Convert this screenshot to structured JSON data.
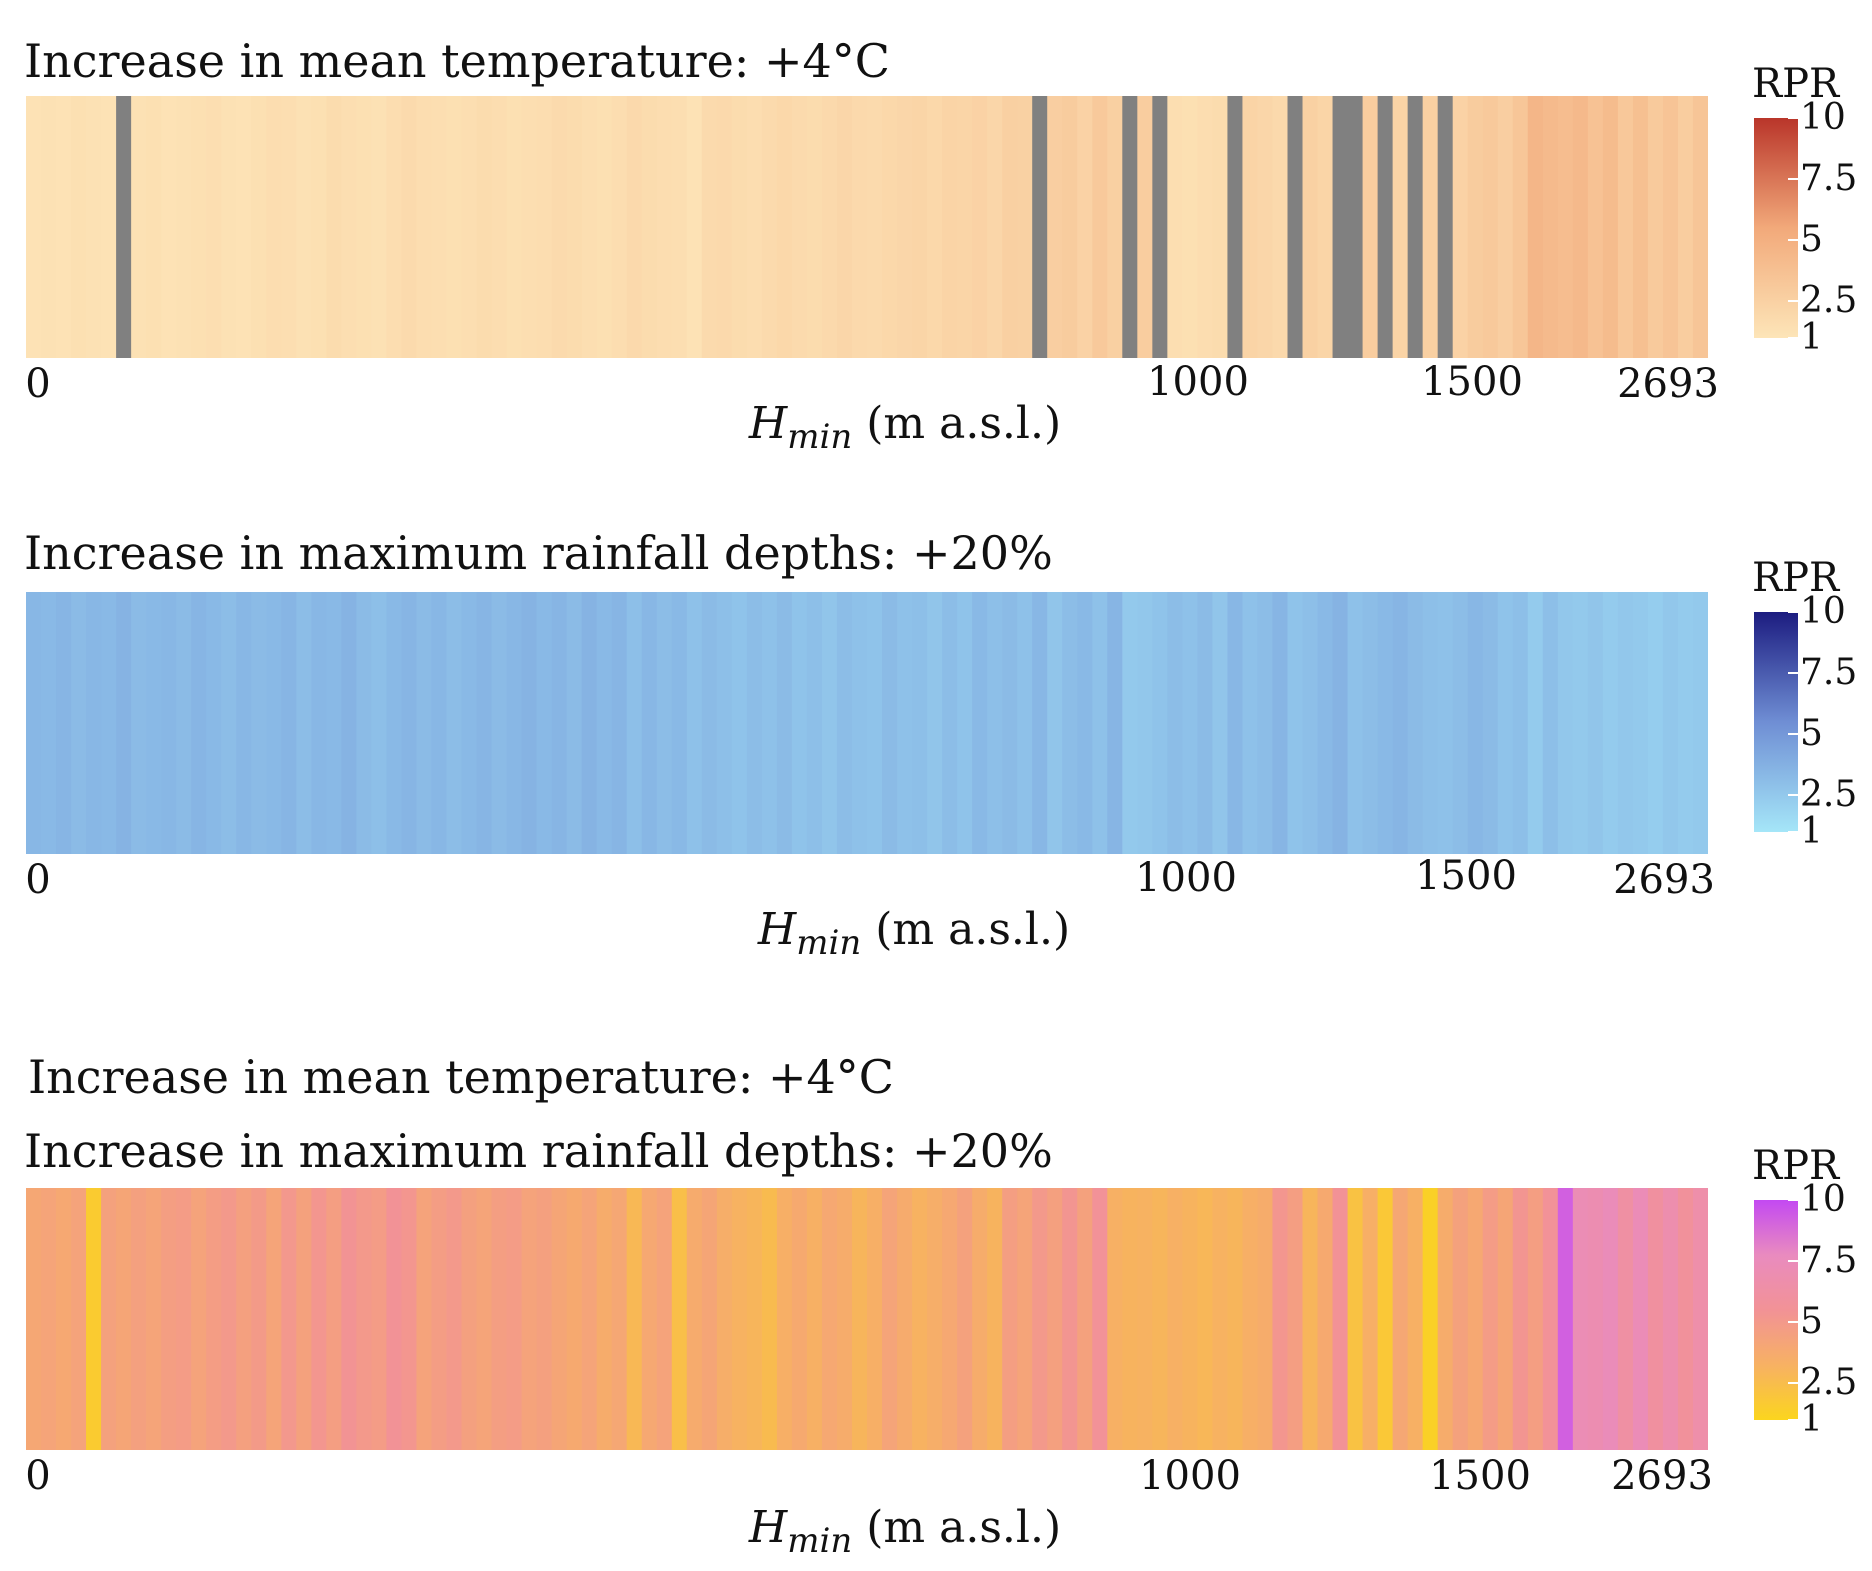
{
  "chart_data": [
    {
      "type": "heatmap",
      "title": "Increase in mean temperature: +4°C",
      "xlabel_var": "H",
      "xlabel_sub": "min",
      "xlabel_unit": "(m a.s.l.)",
      "x_ticks": [
        "0",
        "1000",
        "1500",
        "2693"
      ],
      "x_tick_values": [
        0,
        1000,
        1500,
        2693
      ],
      "legend": {
        "title": "RPR",
        "ticks": [
          "10",
          "7.5",
          "5",
          "2.5",
          "1"
        ],
        "tick_values": [
          10,
          7.5,
          5,
          2.5,
          1
        ],
        "range": [
          1,
          10
        ]
      },
      "colors": {
        "low": "#fde5b8",
        "mid": "#f2a97a",
        "high": "#b9352a",
        "missing": "#808080"
      },
      "values": [
        1.2,
        1.3,
        1.2,
        1.4,
        1.3,
        1.2,
        null,
        1.3,
        1.4,
        1.2,
        1.3,
        1.4,
        1.5,
        1.3,
        1.2,
        1.4,
        1.6,
        1.5,
        1.3,
        1.4,
        1.7,
        1.5,
        1.4,
        1.3,
        1.6,
        1.8,
        1.6,
        1.5,
        1.4,
        1.5,
        1.7,
        1.6,
        1.4,
        1.5,
        1.6,
        1.8,
        1.7,
        1.5,
        1.4,
        1.6,
        1.9,
        1.7,
        1.6,
        1.5,
        1.2,
        1.8,
        1.9,
        1.7,
        1.6,
        1.8,
        2.0,
        1.8,
        1.7,
        1.9,
        2.1,
        1.9,
        1.8,
        2.0,
        2.1,
        2.2,
        2.0,
        2.3,
        2.2,
        2.4,
        2.1,
        2.6,
        2.5,
        null,
        2.7,
        2.9,
        2.4,
        3.1,
        2.6,
        null,
        2.8,
        null,
        1.5,
        1.4,
        1.6,
        1.7,
        null,
        2.3,
        2.1,
        1.9,
        null,
        2.5,
        2.2,
        null,
        null,
        2.8,
        null,
        2.3,
        null,
        2.6,
        null,
        2.4,
        2.9,
        3.1,
        2.7,
        3.3,
        4.5,
        4.2,
        4.0,
        4.3,
        3.6,
        4.1,
        3.2,
        3.8,
        3.0,
        3.5,
        2.8,
        3.4
      ]
    },
    {
      "type": "heatmap",
      "title": "Increase in maximum rainfall depths: +20%",
      "xlabel_var": "H",
      "xlabel_sub": "min",
      "xlabel_unit": "(m a.s.l.)",
      "x_ticks": [
        "0",
        "1000",
        "1500",
        "2693"
      ],
      "x_tick_values": [
        0,
        1000,
        1500,
        2693
      ],
      "legend": {
        "title": "RPR",
        "ticks": [
          "10",
          "7.5",
          "5",
          "2.5",
          "1"
        ],
        "tick_values": [
          10,
          7.5,
          5,
          2.5,
          1
        ],
        "range": [
          1,
          10
        ]
      },
      "colors": {
        "low": "#a5e6f8",
        "mid": "#6f8ed4",
        "high": "#1c1c80"
      },
      "values": [
        3.4,
        3.3,
        3.5,
        3.2,
        3.4,
        3.3,
        3.6,
        3.2,
        3.3,
        3.4,
        3.2,
        3.5,
        3.3,
        3.1,
        3.4,
        3.2,
        3.3,
        3.5,
        3.1,
        3.4,
        3.3,
        3.6,
        3.2,
        3.0,
        3.3,
        3.5,
        3.2,
        3.4,
        3.1,
        3.3,
        3.5,
        3.2,
        3.4,
        3.6,
        3.3,
        3.5,
        3.2,
        3.6,
        3.3,
        3.5,
        3.0,
        3.4,
        3.1,
        3.3,
        2.9,
        3.2,
        3.0,
        2.8,
        3.1,
        2.9,
        3.2,
        2.8,
        3.0,
        2.7,
        3.1,
        2.9,
        2.8,
        3.2,
        2.9,
        3.0,
        2.7,
        3.1,
        2.8,
        3.3,
        3.0,
        3.2,
        2.9,
        3.4,
        2.7,
        3.1,
        3.3,
        2.9,
        3.5,
        2.5,
        2.6,
        2.8,
        3.1,
        2.9,
        3.2,
        2.7,
        3.4,
        2.9,
        3.1,
        3.5,
        2.8,
        3.0,
        3.3,
        3.6,
        2.9,
        3.1,
        3.3,
        3.5,
        3.2,
        3.0,
        2.9,
        3.1,
        3.4,
        3.2,
        2.8,
        3.0,
        2.4,
        3.0,
        2.6,
        2.5,
        2.7,
        2.4,
        2.6,
        2.5,
        2.3,
        2.6,
        2.4,
        2.5
      ]
    },
    {
      "type": "heatmap",
      "title": "Increase in mean temperature: +4°C",
      "subtitle": "Increase in maximum rainfall depths: +20%",
      "xlabel_var": "H",
      "xlabel_sub": "min",
      "xlabel_unit": "(m a.s.l.)",
      "x_ticks": [
        "0",
        "1000",
        "1500",
        "2693"
      ],
      "x_tick_values": [
        0,
        1000,
        1500,
        2693
      ],
      "legend": {
        "title": "RPR",
        "ticks": [
          "10",
          "7.5",
          "5",
          "2.5",
          "1"
        ],
        "tick_values": [
          10,
          7.5,
          5,
          2.5,
          1
        ],
        "range": [
          1,
          10
        ]
      },
      "colors": {
        "low": "#fbd51e",
        "q1": "#f7b163",
        "mid": "#f29296",
        "q3": "#e98bbf",
        "high": "#c349f2"
      },
      "values": [
        4.0,
        4.2,
        3.9,
        4.3,
        1.6,
        4.4,
        4.1,
        4.5,
        4.2,
        4.6,
        4.8,
        4.3,
        4.7,
        5.0,
        4.5,
        4.9,
        4.2,
        5.1,
        4.4,
        5.2,
        4.6,
        5.4,
        5.0,
        4.8,
        5.5,
        5.2,
        4.3,
        4.7,
        5.0,
        4.5,
        4.2,
        4.6,
        4.8,
        4.3,
        4.5,
        4.1,
        3.8,
        4.2,
        3.6,
        4.0,
        2.8,
        3.9,
        4.3,
        2.4,
        3.7,
        4.1,
        3.5,
        3.2,
        3.0,
        2.6,
        3.4,
        3.8,
        3.3,
        3.9,
        3.6,
        3.0,
        3.4,
        4.2,
        3.7,
        3.2,
        3.5,
        3.9,
        4.4,
        3.6,
        3.1,
        4.6,
        4.2,
        5.0,
        4.5,
        5.3,
        4.4,
        5.6,
        3.3,
        3.1,
        3.2,
        3.0,
        3.3,
        3.1,
        2.9,
        3.2,
        3.0,
        3.4,
        3.6,
        5.2,
        4.6,
        3.0,
        3.8,
        5.5,
        2.2,
        3.4,
        1.8,
        4.0,
        3.3,
        1.3,
        3.6,
        4.4,
        3.9,
        4.8,
        4.1,
        5.3,
        4.6,
        5.6,
        9.2,
        7.2,
        7.0,
        7.4,
        6.2,
        7.3,
        6.0,
        6.8,
        5.8,
        6.6
      ]
    }
  ]
}
